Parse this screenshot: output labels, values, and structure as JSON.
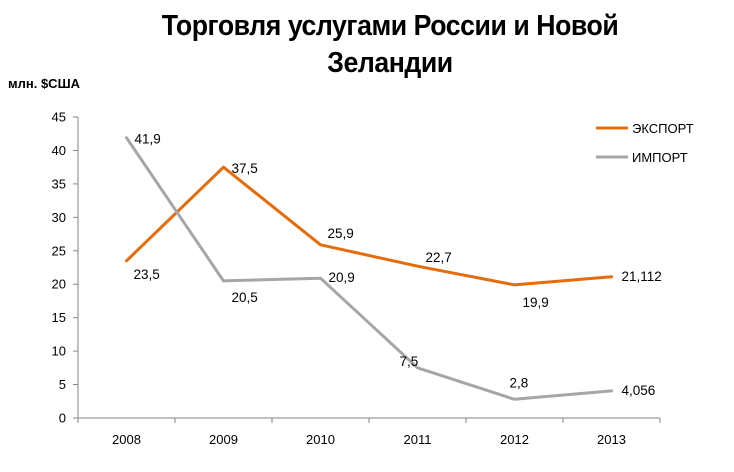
{
  "chart_data": {
    "type": "line",
    "title": "Торговля услугами России и Новой Зеландии",
    "ylabel": "млн. $США",
    "xlabel": "",
    "categories": [
      "2008",
      "2009",
      "2010",
      "2011",
      "2012",
      "2013"
    ],
    "ylim": [
      0,
      45
    ],
    "yticks": [
      0,
      5,
      10,
      15,
      20,
      25,
      30,
      35,
      40,
      45
    ],
    "grid": false,
    "legend_position": "top-right",
    "series": [
      {
        "name": "ЭКСПОРТ",
        "color": "#E46C0A",
        "values": [
          23.5,
          37.5,
          25.9,
          22.7,
          19.9,
          21.112
        ],
        "labels": [
          "23,5",
          "37,5",
          "25,9",
          "22,7",
          "19,9",
          "21,112"
        ]
      },
      {
        "name": "ИМПОРТ",
        "color": "#A6A6A6",
        "values": [
          41.9,
          20.5,
          20.9,
          7.5,
          2.8,
          4.056
        ],
        "labels": [
          "41,9",
          "20,5",
          "20,9",
          "7,5",
          "2,8",
          "4,056"
        ]
      }
    ]
  }
}
